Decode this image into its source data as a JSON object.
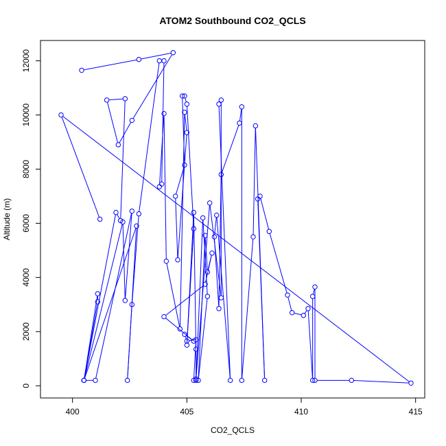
{
  "chart_data": {
    "type": "scatter",
    "title": "ATOM2 Southbound CO2_QCLS",
    "xlabel": "CO2_QCLS",
    "ylabel": "Altitude (m)",
    "xlim": [
      398.6,
      415.4
    ],
    "ylim": [
      -450,
      12750
    ],
    "xticks": [
      400,
      405,
      410,
      415
    ],
    "yticks": [
      0,
      2000,
      4000,
      6000,
      8000,
      10000,
      12000
    ],
    "grid": false,
    "legend": "none",
    "line_color": "#0000ff",
    "marker": "open-circle",
    "series": [
      {
        "values": [
          [
            400.4,
            11650
          ],
          [
            402.9,
            12050
          ],
          [
            404.4,
            12300
          ],
          [
            402.6,
            9800
          ],
          [
            402.0,
            8900
          ],
          [
            401.5,
            10550
          ],
          [
            402.3,
            10600
          ],
          [
            402.1,
            6100
          ],
          [
            401.9,
            6400
          ],
          [
            400.5,
            200
          ],
          [
            401.0,
            200
          ],
          [
            402.6,
            6450
          ],
          [
            402.3,
            3150
          ],
          [
            402.2,
            6050
          ],
          [
            400.5,
            200
          ],
          [
            401.1,
            3400
          ],
          [
            401.1,
            3100
          ],
          [
            400.5,
            200
          ],
          [
            402.8,
            5900
          ],
          [
            402.4,
            200
          ],
          [
            402.6,
            3000
          ],
          [
            402.9,
            6350
          ],
          [
            403.8,
            12000
          ],
          [
            404.0,
            12000
          ],
          [
            403.9,
            7450
          ],
          [
            403.8,
            7350
          ],
          [
            404.0,
            10050
          ],
          [
            404.1,
            4600
          ],
          [
            404.7,
            2100
          ],
          [
            404.9,
            10100
          ],
          [
            405.0,
            9350
          ],
          [
            404.6,
            4650
          ],
          [
            404.5,
            7000
          ],
          [
            404.9,
            8150
          ],
          [
            404.8,
            10700
          ],
          [
            404.9,
            10700
          ],
          [
            405.0,
            10400
          ],
          [
            405.3,
            5800
          ],
          [
            405.0,
            1500
          ],
          [
            405.3,
            6400
          ],
          [
            405.4,
            1350
          ],
          [
            405.4,
            200
          ],
          [
            405.7,
            6200
          ],
          [
            405.9,
            3300
          ],
          [
            405.5,
            200
          ],
          [
            405.8,
            5550
          ],
          [
            405.9,
            4200
          ],
          [
            406.1,
            4900
          ],
          [
            405.8,
            3750
          ],
          [
            404.0,
            2550
          ],
          [
            405.3,
            1650
          ],
          [
            404.9,
            1900
          ],
          [
            405.0,
            1650
          ],
          [
            405.4,
            1700
          ],
          [
            405.3,
            200
          ],
          [
            405.4,
            250
          ],
          [
            406.0,
            6750
          ],
          [
            406.5,
            3250
          ],
          [
            406.5,
            10550
          ],
          [
            406.4,
            10400
          ],
          [
            406.9,
            200
          ],
          [
            406.3,
            6300
          ],
          [
            406.2,
            5500
          ],
          [
            406.4,
            2850
          ],
          [
            406.5,
            7800
          ],
          [
            407.3,
            9700
          ],
          [
            407.4,
            10300
          ],
          [
            407.4,
            200
          ],
          [
            407.9,
            5500
          ],
          [
            408.0,
            9600
          ],
          [
            408.4,
            200
          ],
          [
            408.1,
            6900
          ],
          [
            408.2,
            7000
          ],
          [
            408.6,
            5700
          ],
          [
            409.4,
            3350
          ],
          [
            409.6,
            2700
          ],
          [
            410.1,
            2600
          ],
          [
            410.3,
            2850
          ],
          [
            410.5,
            200
          ],
          [
            410.5,
            3300
          ],
          [
            410.6,
            3650
          ],
          [
            410.6,
            200
          ],
          [
            412.2,
            200
          ],
          [
            414.8,
            100
          ],
          [
            399.5,
            10000
          ],
          [
            401.2,
            6150
          ]
        ]
      }
    ]
  }
}
